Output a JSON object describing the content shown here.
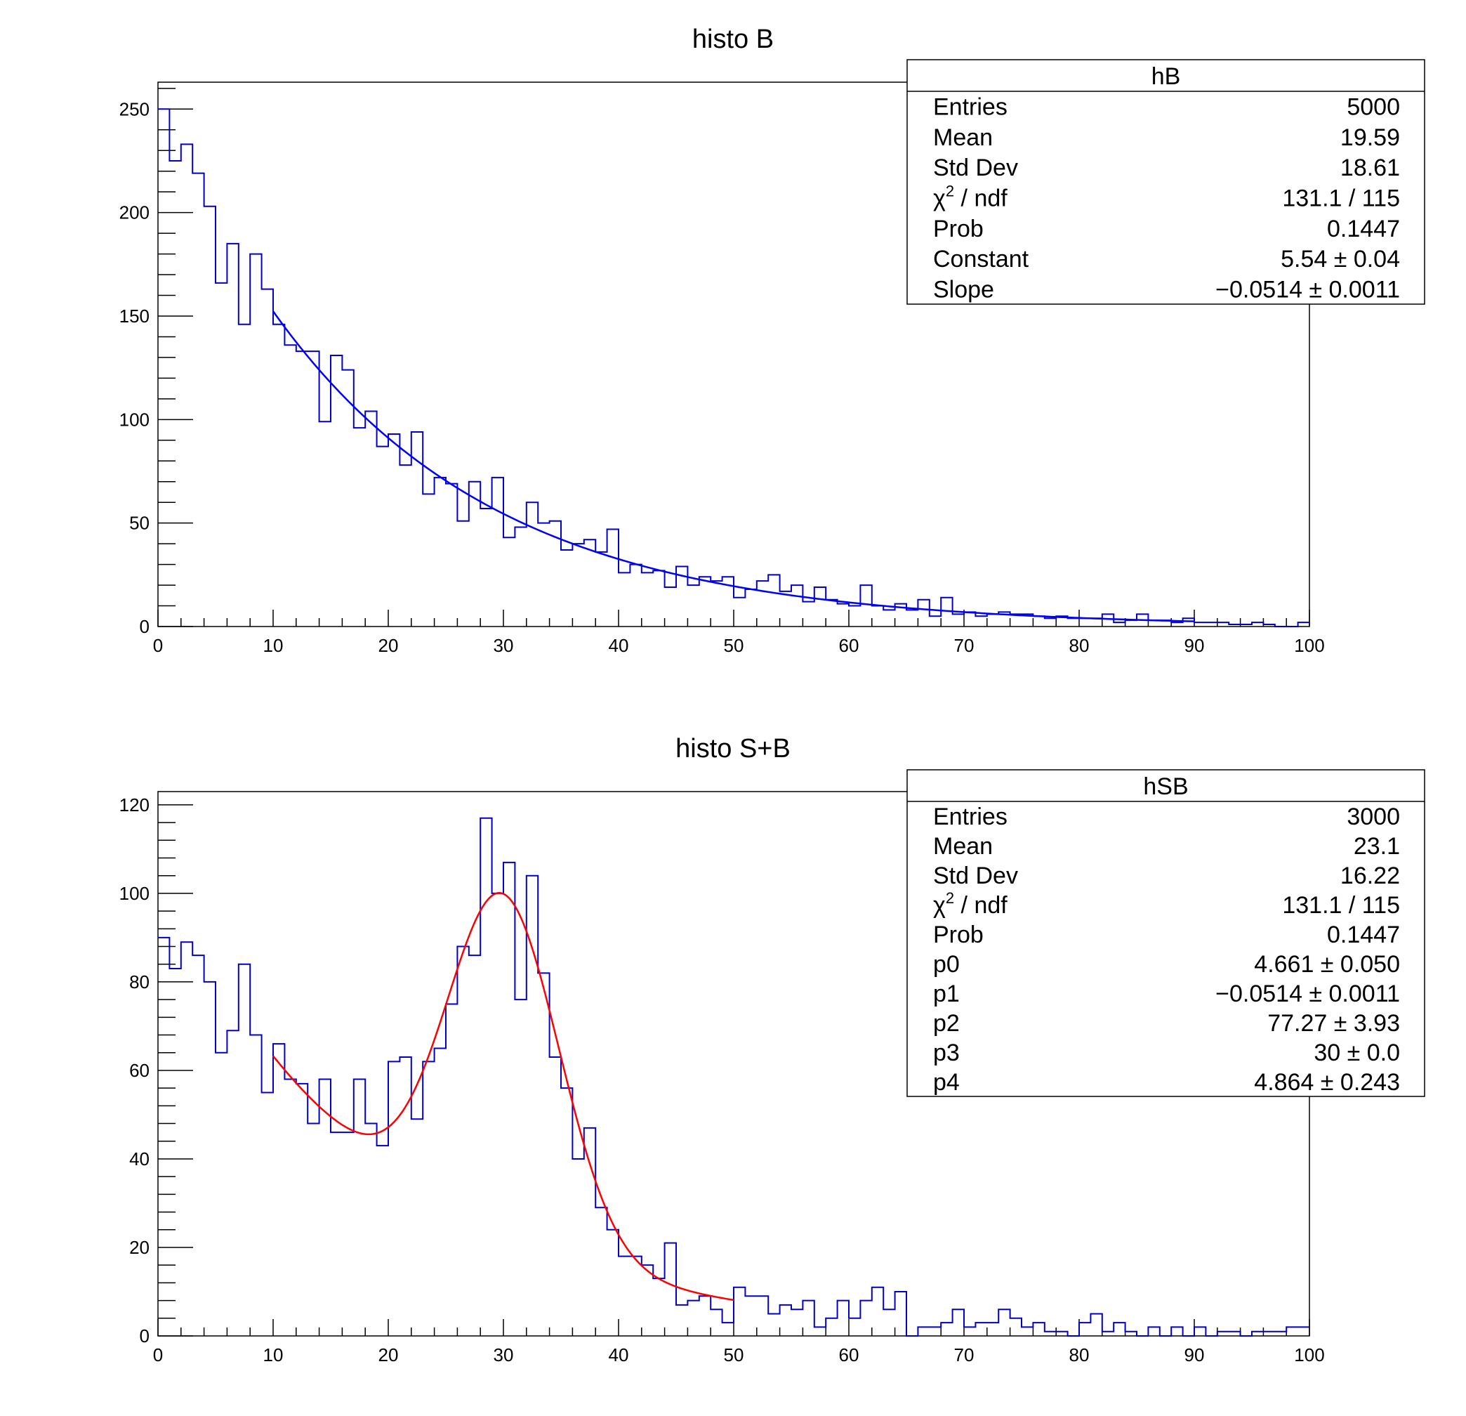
{
  "chart_data": [
    {
      "type": "histogram",
      "title": "histo B",
      "xlabel": "",
      "ylabel": "",
      "xlim": [
        0,
        100
      ],
      "ylim": [
        0,
        263
      ],
      "x_ticks": [
        "0",
        "10",
        "20",
        "30",
        "40",
        "50",
        "60",
        "70",
        "80",
        "90",
        "100"
      ],
      "y_ticks": [
        "0",
        "50",
        "100",
        "150",
        "200",
        "250"
      ],
      "y_tick_values": [
        0,
        50,
        100,
        150,
        200,
        250
      ],
      "histogram_color": "#0000cc",
      "fit_color": "#0000ff",
      "bin_edges_start": 0,
      "bin_width": 1.0,
      "bin_contents": [
        250,
        225,
        233,
        219,
        203,
        166,
        185,
        146,
        180,
        163,
        146,
        136,
        133,
        133,
        99,
        131,
        124,
        96,
        104,
        87,
        93,
        78,
        94,
        64,
        72,
        69,
        51,
        70,
        57,
        72,
        43,
        48,
        60,
        50,
        51,
        37,
        40,
        42,
        36,
        47,
        26,
        30,
        26,
        27,
        19,
        29,
        20,
        24,
        22,
        24,
        14,
        18,
        22,
        25,
        17,
        20,
        12,
        19,
        13,
        11,
        10,
        20,
        10,
        8,
        11,
        8,
        13,
        5,
        14,
        6,
        7,
        5,
        6,
        7,
        6,
        6,
        5,
        4,
        5,
        4,
        4,
        4,
        6,
        2,
        3,
        6,
        3,
        3,
        2,
        4,
        2,
        2,
        2,
        1,
        1,
        2,
        1,
        0,
        0,
        2
      ],
      "fit": {
        "function": "expo",
        "range": [
          10,
          90
        ],
        "constant": 5.54,
        "slope": -0.0514
      },
      "stats_box": {
        "name": "hB",
        "rows": [
          {
            "label": "Entries",
            "value": "5000"
          },
          {
            "label": "Mean",
            "value": "19.59"
          },
          {
            "label": "Std Dev",
            "value": "18.61"
          },
          {
            "label_chi": "χ",
            "label_sup": "2",
            "label_rest": " / ndf",
            "value": "131.1 / 115"
          },
          {
            "label": "Prob",
            "value": "0.1447"
          },
          {
            "label": "Constant",
            "value": "5.54  ± 0.04"
          },
          {
            "label": "Slope",
            "value": "−0.0514  ± 0.0011"
          }
        ]
      }
    },
    {
      "type": "histogram",
      "title": "histo S+B",
      "xlabel": "",
      "ylabel": "",
      "xlim": [
        0,
        100
      ],
      "ylim": [
        0,
        123
      ],
      "x_ticks": [
        "0",
        "10",
        "20",
        "30",
        "40",
        "50",
        "60",
        "70",
        "80",
        "90",
        "100"
      ],
      "y_ticks": [
        "0",
        "20",
        "40",
        "60",
        "80",
        "100",
        "120"
      ],
      "y_tick_values": [
        0,
        20,
        40,
        60,
        80,
        100,
        120
      ],
      "histogram_color": "#0000cc",
      "fit_color": "#ff0000",
      "bin_edges_start": 0,
      "bin_width": 1.0,
      "bin_contents": [
        90,
        83,
        89,
        86,
        80,
        64,
        69,
        84,
        68,
        55,
        66,
        58,
        57,
        48,
        58,
        46,
        46,
        58,
        48,
        43,
        62,
        63,
        49,
        62,
        65,
        75,
        88,
        86,
        117,
        100,
        107,
        76,
        104,
        82,
        63,
        56,
        40,
        47,
        29,
        24,
        18,
        18,
        16,
        13,
        21,
        7,
        8,
        9,
        6,
        3,
        11,
        9,
        9,
        5,
        7,
        6,
        8,
        2,
        4,
        8,
        4,
        8,
        11,
        6,
        10,
        0,
        2,
        2,
        3,
        6,
        2,
        3,
        3,
        6,
        4,
        2,
        3,
        1,
        1,
        0,
        3,
        5,
        1,
        3,
        1,
        0,
        2,
        0,
        2,
        0,
        2,
        0,
        1,
        1,
        0,
        1,
        1,
        1,
        2,
        2
      ],
      "fit": {
        "function": "expo+gaus",
        "range": [
          10,
          50
        ],
        "p0": 4.661,
        "p1": -0.0514,
        "p2": 77.27,
        "p3": 30,
        "p4": 4.864
      },
      "stats_box": {
        "name": "hSB",
        "rows": [
          {
            "label": "Entries",
            "value": "3000"
          },
          {
            "label": "Mean",
            "value": "23.1"
          },
          {
            "label": "Std Dev",
            "value": "16.22"
          },
          {
            "label_chi": "χ",
            "label_sup": "2",
            "label_rest": " / ndf",
            "value": "131.1 / 115"
          },
          {
            "label": "Prob",
            "value": "0.1447"
          },
          {
            "label": "p0",
            "value": "4.661  ± 0.050"
          },
          {
            "label": "p1",
            "value": "−0.0514  ± 0.0011"
          },
          {
            "label": "p2",
            "value": "77.27  ± 3.93"
          },
          {
            "label": "p3",
            "value": "30  ± 0.0"
          },
          {
            "label": "p4",
            "value": "4.864  ± 0.243"
          }
        ]
      }
    }
  ]
}
